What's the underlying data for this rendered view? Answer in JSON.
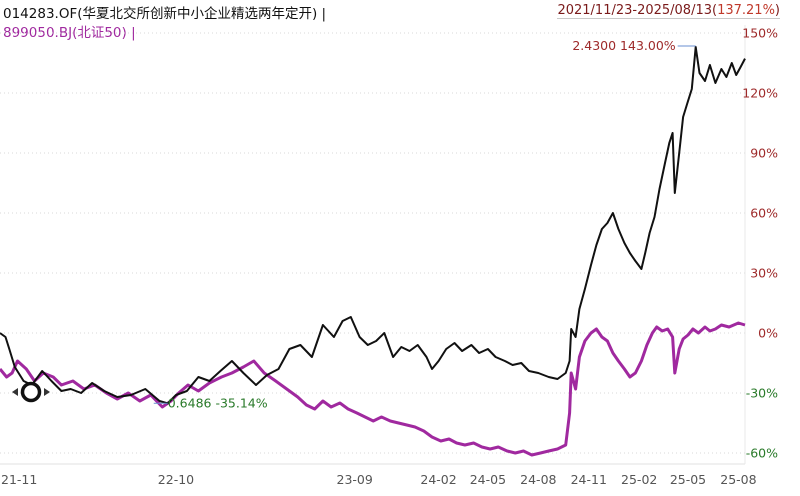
{
  "header": {
    "fund_legend": "014283.OF(华夏北交所创新中小企业精选两年定开) |",
    "index_legend": "899050.BJ(北证50) |",
    "range_prefix": "2021/11/23-2025/08/13(",
    "range_pct": "137.21%",
    "range_suffix": ")"
  },
  "colors": {
    "fund_line": "#111111",
    "index_line": "#a0299f",
    "positive_text": "#9e2a2a",
    "negative_text": "#2a7a2a",
    "grid": "#d8d8d8"
  },
  "chart_data": {
    "type": "line",
    "x_axis_type": "date",
    "xlim": [
      "2021-11-23",
      "2025-08-13"
    ],
    "ylim": [
      -60,
      150
    ],
    "y_unit": "%",
    "grid": "horizontal dotted",
    "y_ticks": [
      150,
      120,
      90,
      60,
      30,
      0,
      -30,
      -60
    ],
    "y_tick_labels": [
      "150%",
      "120%",
      "90%",
      "60%",
      "30%",
      "0%",
      "-30%",
      "-60%"
    ],
    "x_ticks": [
      "2021-11-23",
      "2022-10-10",
      "2023-09-01",
      "2024-02-01",
      "2024-05-01",
      "2024-08-01",
      "2024-11-01",
      "2025-02-01",
      "2025-05-01",
      "2025-08-01"
    ],
    "x_tick_labels": [
      "21-11",
      "22-10",
      "23-09",
      "24-02",
      "24-05",
      "24-08",
      "24-11",
      "25-02",
      "25-05",
      "25-08"
    ],
    "series": [
      {
        "name": "014283.OF(华夏北交所创新中小企业精选两年定开)",
        "color": "#111111",
        "points": [
          [
            "2021-11-23",
            0
          ],
          [
            "2021-12-03",
            -2
          ],
          [
            "2021-12-10",
            -8
          ],
          [
            "2021-12-20",
            -17
          ],
          [
            "2022-01-05",
            -24
          ],
          [
            "2022-01-20",
            -26
          ],
          [
            "2022-02-08",
            -19
          ],
          [
            "2022-02-25",
            -24
          ],
          [
            "2022-03-15",
            -29
          ],
          [
            "2022-04-01",
            -28
          ],
          [
            "2022-04-20",
            -30
          ],
          [
            "2022-05-10",
            -25
          ],
          [
            "2022-06-01",
            -29
          ],
          [
            "2022-06-25",
            -32
          ],
          [
            "2022-07-20",
            -31
          ],
          [
            "2022-08-15",
            -28
          ],
          [
            "2022-09-10",
            -34
          ],
          [
            "2022-09-25",
            -35.14
          ],
          [
            "2022-10-10",
            -31
          ],
          [
            "2022-10-30",
            -29
          ],
          [
            "2022-11-20",
            -22
          ],
          [
            "2022-12-10",
            -24
          ],
          [
            "2022-12-30",
            -19
          ],
          [
            "2023-01-20",
            -14
          ],
          [
            "2023-02-10",
            -20
          ],
          [
            "2023-03-05",
            -26
          ],
          [
            "2023-03-25",
            -21
          ],
          [
            "2023-04-15",
            -18
          ],
          [
            "2023-05-05",
            -8
          ],
          [
            "2023-05-25",
            -6
          ],
          [
            "2023-06-15",
            -12
          ],
          [
            "2023-07-05",
            4
          ],
          [
            "2023-07-25",
            -2
          ],
          [
            "2023-08-10",
            6
          ],
          [
            "2023-08-25",
            8
          ],
          [
            "2023-09-10",
            -2
          ],
          [
            "2023-09-25",
            -6
          ],
          [
            "2023-10-10",
            -4
          ],
          [
            "2023-10-25",
            0
          ],
          [
            "2023-11-10",
            -12
          ],
          [
            "2023-11-25",
            -7
          ],
          [
            "2023-12-10",
            -9
          ],
          [
            "2023-12-25",
            -6
          ],
          [
            "2024-01-10",
            -12
          ],
          [
            "2024-01-20",
            -18
          ],
          [
            "2024-02-01",
            -14
          ],
          [
            "2024-02-15",
            -8
          ],
          [
            "2024-03-01",
            -5
          ],
          [
            "2024-03-15",
            -9
          ],
          [
            "2024-04-01",
            -6
          ],
          [
            "2024-04-15",
            -10
          ],
          [
            "2024-05-01",
            -8
          ],
          [
            "2024-05-15",
            -12
          ],
          [
            "2024-06-01",
            -14
          ],
          [
            "2024-06-15",
            -16
          ],
          [
            "2024-07-01",
            -15
          ],
          [
            "2024-07-15",
            -19
          ],
          [
            "2024-08-01",
            -20
          ],
          [
            "2024-08-20",
            -22
          ],
          [
            "2024-09-05",
            -23
          ],
          [
            "2024-09-20",
            -20
          ],
          [
            "2024-09-27",
            -14
          ],
          [
            "2024-09-30",
            2
          ],
          [
            "2024-10-08",
            -2
          ],
          [
            "2024-10-15",
            12
          ],
          [
            "2024-10-25",
            22
          ],
          [
            "2024-11-05",
            34
          ],
          [
            "2024-11-15",
            44
          ],
          [
            "2024-11-25",
            52
          ],
          [
            "2024-12-05",
            55
          ],
          [
            "2024-12-15",
            60
          ],
          [
            "2024-12-25",
            52
          ],
          [
            "2025-01-05",
            45
          ],
          [
            "2025-01-15",
            40
          ],
          [
            "2025-01-25",
            36
          ],
          [
            "2025-02-05",
            32
          ],
          [
            "2025-02-12",
            40
          ],
          [
            "2025-02-20",
            50
          ],
          [
            "2025-03-01",
            58
          ],
          [
            "2025-03-10",
            72
          ],
          [
            "2025-03-20",
            85
          ],
          [
            "2025-03-28",
            95
          ],
          [
            "2025-04-03",
            100
          ],
          [
            "2025-04-07",
            70
          ],
          [
            "2025-04-15",
            90
          ],
          [
            "2025-04-22",
            108
          ],
          [
            "2025-04-30",
            115
          ],
          [
            "2025-05-08",
            122
          ],
          [
            "2025-05-15",
            143.0
          ],
          [
            "2025-05-22",
            130
          ],
          [
            "2025-06-01",
            126
          ],
          [
            "2025-06-10",
            134
          ],
          [
            "2025-06-20",
            125
          ],
          [
            "2025-07-01",
            132
          ],
          [
            "2025-07-10",
            128
          ],
          [
            "2025-07-20",
            135
          ],
          [
            "2025-07-28",
            129
          ],
          [
            "2025-08-05",
            133
          ],
          [
            "2025-08-13",
            137.21
          ]
        ]
      },
      {
        "name": "899050.BJ(北证50)",
        "color": "#a0299f",
        "points": [
          [
            "2021-11-23",
            -18
          ],
          [
            "2021-12-05",
            -22
          ],
          [
            "2021-12-15",
            -20
          ],
          [
            "2021-12-25",
            -14
          ],
          [
            "2022-01-10",
            -18
          ],
          [
            "2022-01-25",
            -24
          ],
          [
            "2022-02-10",
            -20
          ],
          [
            "2022-02-28",
            -22
          ],
          [
            "2022-03-15",
            -26
          ],
          [
            "2022-04-05",
            -24
          ],
          [
            "2022-04-25",
            -28
          ],
          [
            "2022-05-15",
            -26
          ],
          [
            "2022-06-05",
            -30
          ],
          [
            "2022-06-25",
            -33
          ],
          [
            "2022-07-15",
            -30
          ],
          [
            "2022-08-05",
            -34
          ],
          [
            "2022-08-25",
            -31
          ],
          [
            "2022-09-15",
            -37
          ],
          [
            "2022-10-01",
            -34
          ],
          [
            "2022-10-15",
            -30
          ],
          [
            "2022-11-01",
            -26
          ],
          [
            "2022-11-20",
            -29
          ],
          [
            "2022-12-10",
            -25
          ],
          [
            "2023-01-01",
            -22
          ],
          [
            "2023-01-20",
            -20
          ],
          [
            "2023-02-10",
            -17
          ],
          [
            "2023-03-01",
            -14
          ],
          [
            "2023-03-20",
            -20
          ],
          [
            "2023-04-10",
            -24
          ],
          [
            "2023-04-30",
            -28
          ],
          [
            "2023-05-20",
            -32
          ],
          [
            "2023-06-05",
            -36
          ],
          [
            "2023-06-20",
            -38
          ],
          [
            "2023-07-05",
            -34
          ],
          [
            "2023-07-20",
            -37
          ],
          [
            "2023-08-05",
            -35
          ],
          [
            "2023-08-20",
            -38
          ],
          [
            "2023-09-05",
            -40
          ],
          [
            "2023-09-20",
            -42
          ],
          [
            "2023-10-05",
            -44
          ],
          [
            "2023-10-20",
            -42
          ],
          [
            "2023-11-05",
            -44
          ],
          [
            "2023-11-20",
            -45
          ],
          [
            "2023-12-05",
            -46
          ],
          [
            "2023-12-20",
            -47
          ],
          [
            "2024-01-05",
            -49
          ],
          [
            "2024-01-20",
            -52
          ],
          [
            "2024-02-05",
            -54
          ],
          [
            "2024-02-20",
            -53
          ],
          [
            "2024-03-05",
            -55
          ],
          [
            "2024-03-20",
            -56
          ],
          [
            "2024-04-05",
            -55
          ],
          [
            "2024-04-20",
            -57
          ],
          [
            "2024-05-05",
            -58
          ],
          [
            "2024-05-20",
            -57
          ],
          [
            "2024-06-05",
            -59
          ],
          [
            "2024-06-20",
            -60
          ],
          [
            "2024-07-05",
            -59
          ],
          [
            "2024-07-20",
            -61
          ],
          [
            "2024-08-05",
            -60
          ],
          [
            "2024-08-20",
            -59
          ],
          [
            "2024-09-05",
            -58
          ],
          [
            "2024-09-20",
            -56
          ],
          [
            "2024-09-27",
            -40
          ],
          [
            "2024-09-30",
            -20
          ],
          [
            "2024-10-08",
            -28
          ],
          [
            "2024-10-15",
            -12
          ],
          [
            "2024-10-25",
            -4
          ],
          [
            "2024-11-05",
            0
          ],
          [
            "2024-11-15",
            2
          ],
          [
            "2024-11-25",
            -2
          ],
          [
            "2024-12-05",
            -4
          ],
          [
            "2024-12-15",
            -10
          ],
          [
            "2024-12-25",
            -14
          ],
          [
            "2025-01-05",
            -18
          ],
          [
            "2025-01-15",
            -22
          ],
          [
            "2025-01-25",
            -20
          ],
          [
            "2025-02-05",
            -14
          ],
          [
            "2025-02-15",
            -6
          ],
          [
            "2025-02-25",
            0
          ],
          [
            "2025-03-05",
            3
          ],
          [
            "2025-03-15",
            1
          ],
          [
            "2025-03-25",
            2
          ],
          [
            "2025-04-03",
            -2
          ],
          [
            "2025-04-07",
            -20
          ],
          [
            "2025-04-15",
            -8
          ],
          [
            "2025-04-22",
            -3
          ],
          [
            "2025-05-01",
            -1
          ],
          [
            "2025-05-10",
            2
          ],
          [
            "2025-05-20",
            0
          ],
          [
            "2025-06-01",
            3
          ],
          [
            "2025-06-10",
            1
          ],
          [
            "2025-06-20",
            2
          ],
          [
            "2025-07-01",
            4
          ],
          [
            "2025-07-15",
            3
          ],
          [
            "2025-08-01",
            5
          ],
          [
            "2025-08-13",
            4
          ]
        ]
      }
    ],
    "annotations": [
      {
        "label": "2.4300 143.00%",
        "x": "2025-05-15",
        "y": 143.0,
        "color": "#9e2a2a"
      },
      {
        "label": "0.6486 -35.14%",
        "x": "2022-09-25",
        "y": -35.14,
        "color": "#2a7a2a"
      }
    ]
  }
}
